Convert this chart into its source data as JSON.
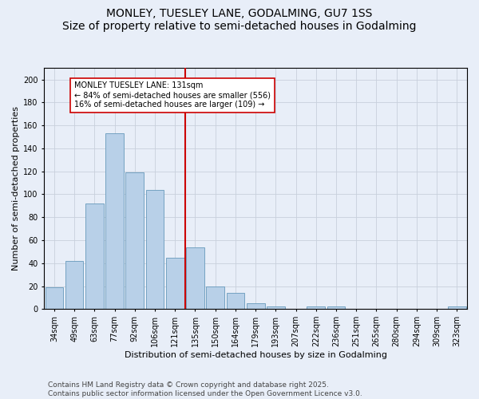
{
  "title": "MONLEY, TUESLEY LANE, GODALMING, GU7 1SS",
  "subtitle": "Size of property relative to semi-detached houses in Godalming",
  "xlabel": "Distribution of semi-detached houses by size in Godalming",
  "ylabel": "Number of semi-detached properties",
  "categories": [
    "34sqm",
    "49sqm",
    "63sqm",
    "77sqm",
    "92sqm",
    "106sqm",
    "121sqm",
    "135sqm",
    "150sqm",
    "164sqm",
    "179sqm",
    "193sqm",
    "207sqm",
    "222sqm",
    "236sqm",
    "251sqm",
    "265sqm",
    "280sqm",
    "294sqm",
    "309sqm",
    "323sqm"
  ],
  "values": [
    19,
    42,
    92,
    153,
    119,
    104,
    45,
    54,
    20,
    14,
    5,
    2,
    0,
    2,
    2,
    0,
    0,
    0,
    0,
    0,
    2
  ],
  "bar_color": "#b8d0e8",
  "bar_edge_color": "#6699bb",
  "vline_index": 7,
  "vline_color": "#cc0000",
  "annotation_text": "MONLEY TUESLEY LANE: 131sqm\n← 84% of semi-detached houses are smaller (556)\n16% of semi-detached houses are larger (109) →",
  "annotation_box_facecolor": "#ffffff",
  "annotation_box_edgecolor": "#cc0000",
  "ylim": [
    0,
    210
  ],
  "yticks": [
    0,
    20,
    40,
    60,
    80,
    100,
    120,
    140,
    160,
    180,
    200
  ],
  "footer_line1": "Contains HM Land Registry data © Crown copyright and database right 2025.",
  "footer_line2": "Contains public sector information licensed under the Open Government Licence v3.0.",
  "title_fontsize": 10,
  "axis_label_fontsize": 8,
  "tick_fontsize": 7,
  "annotation_fontsize": 7,
  "footer_fontsize": 6.5,
  "background_color": "#e8eef8",
  "grid_color": "#c8d0dc"
}
